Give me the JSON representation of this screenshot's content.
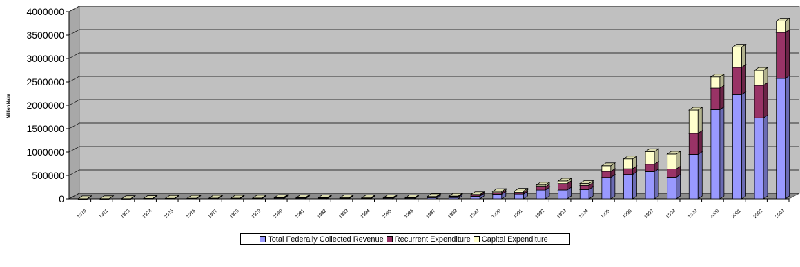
{
  "chart_data": {
    "type": "bar",
    "stacked": true,
    "three_d": true,
    "title": "",
    "xlabel": "",
    "ylabel": "Million Naira",
    "ylim": [
      0,
      4000000
    ],
    "yticks": [
      0,
      500000,
      1000000,
      1500000,
      2000000,
      2500000,
      3000000,
      3500000,
      4000000
    ],
    "grid": true,
    "legend_position": "bottom",
    "categories": [
      "1970",
      "1971",
      "1973",
      "1974",
      "1975",
      "1976",
      "1977",
      "1978",
      "1979",
      "1980",
      "1981",
      "1982",
      "1983",
      "1984",
      "1985",
      "1986",
      "1987",
      "1988",
      "1989",
      "1990",
      "1991",
      "1992",
      "1993",
      "1994",
      "1995",
      "1996",
      "1997",
      "1998",
      "1999",
      "2000",
      "2001",
      "2002",
      "2003"
    ],
    "series": [
      {
        "name": "Total Federally Collected Revenue",
        "color": "#9999ff",
        "values": [
          1000,
          1500,
          2000,
          5000,
          5500,
          6500,
          8000,
          7500,
          9000,
          15000,
          13000,
          11000,
          10500,
          11000,
          15000,
          13000,
          25000,
          27000,
          53000,
          98000,
          101000,
          190000,
          192000,
          201000,
          460000,
          520000,
          582000,
          463000,
          949000,
          1906000,
          2231000,
          1731000,
          2575000
        ]
      },
      {
        "name": "Recurrent Expenditure",
        "color": "#993366",
        "values": [
          500,
          700,
          1000,
          1500,
          2000,
          2500,
          3000,
          3500,
          4000,
          5000,
          5500,
          6000,
          5500,
          6000,
          7000,
          7500,
          15000,
          19000,
          25000,
          37000,
          38000,
          67000,
          136000,
          90000,
          127000,
          125000,
          158000,
          178000,
          450000,
          461000,
          580000,
          696000,
          984000
        ]
      },
      {
        "name": "Capital Expenditure",
        "color": "#ffffcc",
        "values": [
          300,
          500,
          1000,
          1500,
          3000,
          3500,
          4000,
          3500,
          3000,
          8000,
          7000,
          6000,
          5000,
          3000,
          2000,
          2500,
          7000,
          10000,
          14000,
          25000,
          28000,
          40000,
          55000,
          40000,
          122000,
          212000,
          270000,
          316000,
          498000,
          240000,
          430000,
          321000,
          242000
        ]
      }
    ]
  }
}
